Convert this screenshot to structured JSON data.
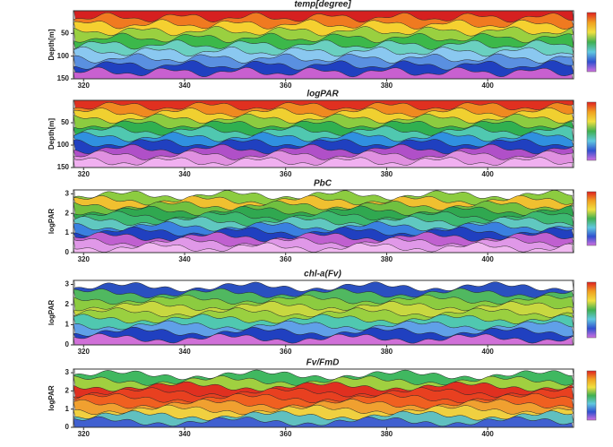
{
  "chart_data": [
    {
      "type": "contour",
      "title": "temp[degree]",
      "y_label": "Depth[m]",
      "xlim": [
        318,
        417
      ],
      "xticks": [
        320,
        340,
        360,
        380,
        400
      ],
      "ylim": [
        150,
        0
      ],
      "yticks": [
        50,
        100,
        150
      ],
      "colors": [
        "#d62020",
        "#f07a20",
        "#f5d030",
        "#9ad040",
        "#3cb84a",
        "#6ad0c0",
        "#8ac8f0",
        "#5a90e0",
        "#2040c0",
        "#c860d0"
      ]
    },
    {
      "type": "contour",
      "title": "logPAR",
      "y_label": "Depth[m]",
      "xlim": [
        318,
        417
      ],
      "xticks": [
        320,
        340,
        360,
        380,
        400
      ],
      "ylim": [
        150,
        0
      ],
      "yticks": [
        50,
        100,
        150
      ],
      "colors": [
        "#e03020",
        "#f08a20",
        "#f0d030",
        "#8ccc40",
        "#30b050",
        "#50c8b0",
        "#3090e0",
        "#2040c0",
        "#b050c8",
        "#e090e0",
        "#f0b0f0"
      ]
    },
    {
      "type": "contour",
      "title": "PbC",
      "y_label": "logPAR",
      "xlim": [
        318,
        417
      ],
      "xticks": [
        320,
        340,
        360,
        380,
        400
      ],
      "ylim": [
        0,
        3.2
      ],
      "yticks": [
        0,
        1,
        2,
        3
      ],
      "colors": [
        "#ffffff",
        "#8ccc40",
        "#f0c030",
        "#70c040",
        "#30a850",
        "#3cb870",
        "#60c8c0",
        "#3a80e0",
        "#2040c0",
        "#c060d0",
        "#e098e8",
        "#f0b8f0"
      ]
    },
    {
      "type": "contour",
      "title": "chl-a(Fv)",
      "y_label": "logPAR",
      "xlim": [
        318,
        417
      ],
      "xticks": [
        320,
        340,
        360,
        380,
        400
      ],
      "ylim": [
        0,
        3.2
      ],
      "yticks": [
        0,
        1,
        2,
        3
      ],
      "colors": [
        "#ffffff",
        "#2a50c0",
        "#50b860",
        "#8ccc40",
        "#c8d840",
        "#9ad040",
        "#50c8b0",
        "#60a0e8",
        "#2040c0",
        "#d070d8"
      ]
    },
    {
      "type": "contour",
      "title": "Fv/FmD",
      "y_label": "logPAR",
      "xlim": [
        318,
        417
      ],
      "xticks": [
        320,
        340,
        360,
        380,
        400
      ],
      "ylim": [
        0,
        3.2
      ],
      "yticks": [
        0,
        1,
        2,
        3
      ],
      "colors": [
        "#ffffff",
        "#40b860",
        "#a0d040",
        "#e03020",
        "#e84020",
        "#f06020",
        "#f0a030",
        "#f0d040",
        "#60c0c0",
        "#4060d0"
      ]
    }
  ]
}
